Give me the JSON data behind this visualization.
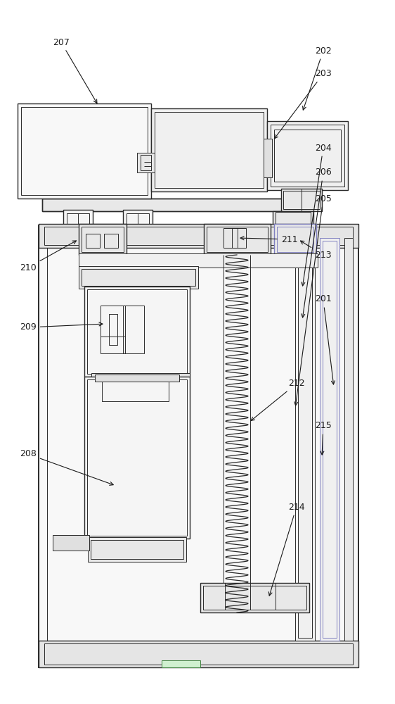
{
  "bg_color": "#ffffff",
  "line_color": "#2a2a2a",
  "label_color": "#1a1a1a",
  "figsize": [
    5.62,
    10.0
  ],
  "dpi": 100,
  "purple_color": "#8080c0",
  "green_color": "#409040"
}
